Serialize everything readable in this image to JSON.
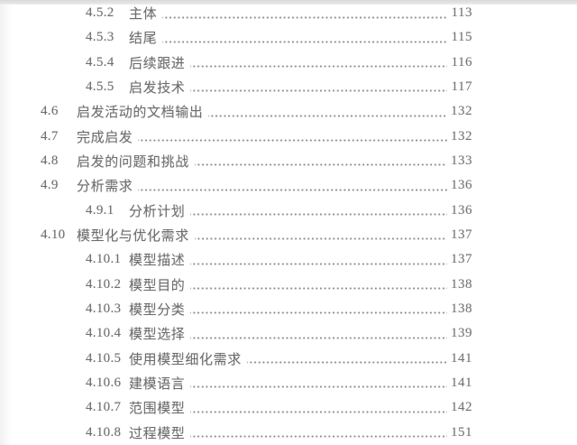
{
  "document": {
    "kind": "table-of-contents-page",
    "language": "zh"
  },
  "colors": {
    "text": "#6d6d6d",
    "page_number": "#747474",
    "leader_dots": "#8f8f8f",
    "top_edge": "#e2e2e2"
  },
  "toc": {
    "entries": [
      {
        "level": 3,
        "number": "4.5.2",
        "title": "主体",
        "page": "113"
      },
      {
        "level": 3,
        "number": "4.5.3",
        "title": "结尾",
        "page": "115"
      },
      {
        "level": 3,
        "number": "4.5.4",
        "title": "后续跟进",
        "page": "116"
      },
      {
        "level": 3,
        "number": "4.5.5",
        "title": "启发技术",
        "page": "117"
      },
      {
        "level": 2,
        "number": "4.6",
        "title": "启发活动的文档输出",
        "page": "132"
      },
      {
        "level": 2,
        "number": "4.7",
        "title": "完成启发",
        "page": "132"
      },
      {
        "level": 2,
        "number": "4.8",
        "title": "启发的问题和挑战",
        "page": "133"
      },
      {
        "level": 2,
        "number": "4.9",
        "title": "分析需求",
        "page": "136"
      },
      {
        "level": 3,
        "number": "4.9.1",
        "title": "分析计划",
        "page": "136"
      },
      {
        "level": 2,
        "number": "4.10",
        "title": "模型化与优化需求",
        "page": "137"
      },
      {
        "level": 3,
        "number": "4.10.1",
        "title": "模型描述",
        "page": "137"
      },
      {
        "level": 3,
        "number": "4.10.2",
        "title": "模型目的",
        "page": "138"
      },
      {
        "level": 3,
        "number": "4.10.3",
        "title": "模型分类",
        "page": "138"
      },
      {
        "level": 3,
        "number": "4.10.4",
        "title": "模型选择",
        "page": "139"
      },
      {
        "level": 3,
        "number": "4.10.5",
        "title": "使用模型细化需求",
        "page": "141"
      },
      {
        "level": 3,
        "number": "4.10.6",
        "title": "建模语言",
        "page": "141"
      },
      {
        "level": 3,
        "number": "4.10.7",
        "title": "范围模型",
        "page": "142"
      },
      {
        "level": 3,
        "number": "4.10.8",
        "title": "过程模型",
        "page": "151"
      }
    ]
  }
}
